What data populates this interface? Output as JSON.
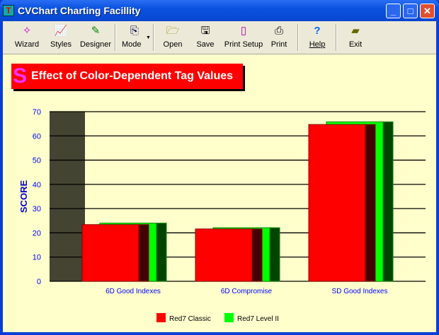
{
  "window": {
    "title": "CVChart Charting Facillity"
  },
  "toolbar": [
    {
      "label": "Wizard",
      "icon": "wand-icon"
    },
    {
      "label": "Styles",
      "icon": "chart-styles-icon"
    },
    {
      "label": "Designer",
      "icon": "pen-icon"
    },
    {
      "label": "Mode",
      "icon": "copy-icon"
    },
    {
      "label": "Open",
      "icon": "folder-open-icon"
    },
    {
      "label": "Save",
      "icon": "floppy-icon"
    },
    {
      "label": "Print Setup",
      "icon": "page-icon"
    },
    {
      "label": "Print",
      "icon": "printer-icon"
    },
    {
      "label": "Help",
      "icon": "help-icon"
    },
    {
      "label": "Exit",
      "icon": "exit-icon"
    }
  ],
  "chart_data": {
    "type": "bar",
    "title": "Effect of Color-Dependent Tag Values",
    "ylabel": "SCORE",
    "xlabel": "",
    "ylim": [
      0,
      70
    ],
    "yticks": [
      "0",
      "10",
      "20",
      "30",
      "40",
      "50",
      "60",
      "70"
    ],
    "categories": [
      "6D Good Indexes",
      "6D Compromise",
      "SD Good  Indexes"
    ],
    "series": [
      {
        "name": "Red7 Classic",
        "values": [
          23.4,
          21.6,
          64.7
        ],
        "color": "#ff0000",
        "side": "#440000"
      },
      {
        "name": "Red7 Level II",
        "values": [
          24.0,
          22.1,
          65.8
        ],
        "color": "#00ff00",
        "side": "#004400"
      }
    ],
    "grid": true,
    "legend": "bottom",
    "colors": {
      "background": "#ffffcc",
      "text": "#0000ff",
      "wall": "#444433"
    }
  }
}
